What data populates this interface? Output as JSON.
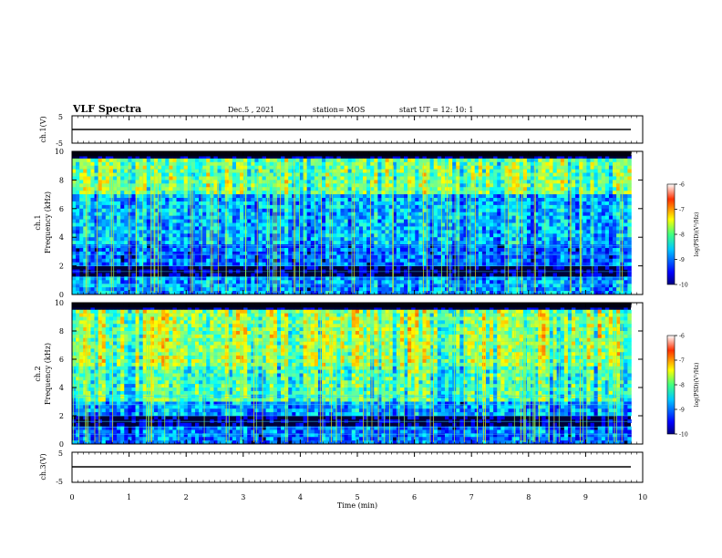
{
  "header": {
    "title": "VLF Spectra",
    "date": "Dec.5 , 2021",
    "station": "station= MOS",
    "start": "start UT = 12: 10: 1"
  },
  "chart_data": [
    {
      "type": "line",
      "name": "ch1-waveform",
      "ylabel": "ch.1(V)",
      "ylim": [
        -5,
        5
      ],
      "yticks": [
        5,
        -5
      ],
      "xlim": [
        0,
        10
      ],
      "x": [
        0,
        9.8
      ],
      "y": [
        0,
        0
      ]
    },
    {
      "type": "heatmap",
      "name": "ch1-spectrogram",
      "ylabel": "ch.1\nFrequency (kHz)",
      "ylim": [
        0,
        10
      ],
      "yticks": [
        0,
        2,
        4,
        6,
        8,
        10
      ],
      "xlim": [
        0,
        10
      ],
      "data_end_min": 9.8,
      "colorbar": {
        "label": "log(PSD)(V²/Hz)",
        "range": [
          -10,
          -6
        ],
        "ticks": [
          -6,
          -7,
          -8,
          -9,
          -10
        ]
      }
    },
    {
      "type": "heatmap",
      "name": "ch2-spectrogram",
      "ylabel": "ch.2\nFrequency (kHz)",
      "ylim": [
        0,
        10
      ],
      "yticks": [
        0,
        2,
        4,
        6,
        8,
        10
      ],
      "xlim": [
        0,
        10
      ],
      "data_end_min": 9.8,
      "colorbar": {
        "label": "log(PSD)(V²/Hz)",
        "range": [
          -10,
          -6
        ],
        "ticks": [
          -6,
          -7,
          -8,
          -9,
          -10
        ]
      }
    },
    {
      "type": "line",
      "name": "ch3-waveform",
      "ylabel": "ch.3(V)",
      "ylim": [
        -5,
        5
      ],
      "yticks": [
        5,
        -5
      ],
      "xlim": [
        0,
        10
      ],
      "x": [
        0,
        9.8
      ],
      "y": [
        0,
        0
      ]
    }
  ],
  "xaxis": {
    "label": "Time (min)",
    "ticks": [
      0,
      1,
      2,
      3,
      4,
      5,
      6,
      7,
      8,
      9,
      10
    ]
  },
  "colors": {
    "jet": [
      "#000080",
      "#0000ff",
      "#0080ff",
      "#00ffff",
      "#80ff80",
      "#ffff00",
      "#ff8000",
      "#ff0000",
      "#800000"
    ],
    "background_low": "#000020",
    "axis": "#000000"
  }
}
